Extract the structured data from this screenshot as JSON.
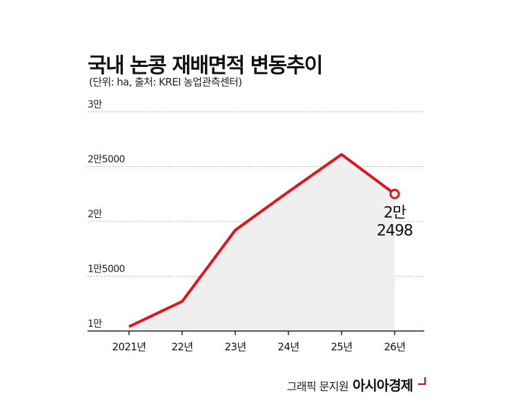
{
  "header": {
    "title": "국내 논콩 재배면적 변동추이",
    "subtitle": "(단위: ha, 출처: KREI 농업관측센터)"
  },
  "footer": {
    "credit": "그래픽 문지원",
    "brand": "아시아경제"
  },
  "colors": {
    "line": "#e2141b",
    "area": "#efefef",
    "grid": "#9a9a9a",
    "text": "#111111"
  },
  "chart_data": {
    "type": "area",
    "categories": [
      "2021년",
      "22년",
      "23년",
      "24년",
      "25년",
      "26년"
    ],
    "values": [
      10400,
      12700,
      19200,
      22700,
      26100,
      22498
    ],
    "ylim": [
      10000,
      30000
    ],
    "yticks": [
      {
        "value": 10000,
        "label": "1만"
      },
      {
        "value": 15000,
        "label": "1만5000"
      },
      {
        "value": 20000,
        "label": "2만"
      },
      {
        "value": 25000,
        "label": "2만5000"
      },
      {
        "value": 30000,
        "label": "3만"
      }
    ],
    "last_point_label": [
      "2만",
      "2498"
    ],
    "grid": true,
    "legend": "none"
  }
}
